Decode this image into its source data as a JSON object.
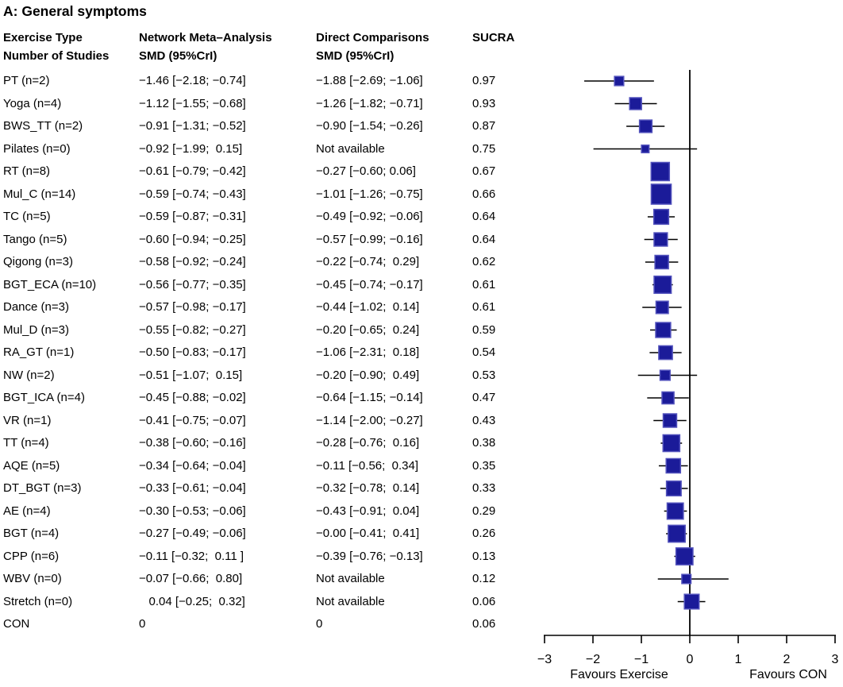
{
  "title": "A: General symptoms",
  "table": {
    "headers": {
      "col1_line1": "Exercise Type",
      "col1_line2": "Number of Studies",
      "col2_line1": "Network Meta–Analysis",
      "col2_line2": "SMD (95%CrI)",
      "col3_line1": "Direct Comparisons",
      "col3_line2": "SMD (95%CrI)",
      "col4_line1": "SUCRA"
    }
  },
  "chart_data": {
    "type": "scatter",
    "variant": "forest-plot",
    "title": "A: General symptoms",
    "x_axis": {
      "min": -3,
      "max": 3,
      "tick_values": [
        -3,
        -2,
        -1,
        0,
        1,
        2,
        3
      ],
      "tick_labels": [
        "−3",
        "−2",
        "−1",
        "0",
        "1",
        "2",
        "3"
      ],
      "reference_line": 0,
      "label_left": "Favours Exercise",
      "label_right": "Favours CON"
    },
    "rows": [
      {
        "label": "PT (n=2)",
        "nma": "−1.46 [−2.18; −0.74]",
        "direct": "−1.88 [−2.69; −1.06]",
        "sucra": "0.97",
        "est": -1.46,
        "lo": -2.18,
        "hi": -0.74
      },
      {
        "label": "Yoga (n=4)",
        "nma": "−1.12 [−1.55; −0.68]",
        "direct": "−1.26 [−1.82; −0.71]",
        "sucra": "0.93",
        "est": -1.12,
        "lo": -1.55,
        "hi": -0.68
      },
      {
        "label": "BWS_TT (n=2)",
        "nma": "−0.91 [−1.31; −0.52]",
        "direct": "−0.90 [−1.54; −0.26]",
        "sucra": "0.87",
        "est": -0.91,
        "lo": -1.31,
        "hi": -0.52
      },
      {
        "label": "Pilates (n=0)",
        "nma": "−0.92 [−1.99;  0.15]",
        "direct": "Not available",
        "sucra": "0.75",
        "est": -0.92,
        "lo": -1.99,
        "hi": 0.15
      },
      {
        "label": "RT (n=8)",
        "nma": "−0.61 [−0.79; −0.42]",
        "direct": "−0.27 [−0.60; 0.06]",
        "sucra": "0.67",
        "est": -0.61,
        "lo": -0.79,
        "hi": -0.42
      },
      {
        "label": "Mul_C (n=14)",
        "nma": "−0.59 [−0.74; −0.43]",
        "direct": "−1.01 [−1.26; −0.75]",
        "sucra": "0.66",
        "est": -0.59,
        "lo": -0.74,
        "hi": -0.43
      },
      {
        "label": "TC (n=5)",
        "nma": "−0.59 [−0.87; −0.31]",
        "direct": "−0.49 [−0.92; −0.06]",
        "sucra": "0.64",
        "est": -0.59,
        "lo": -0.87,
        "hi": -0.31
      },
      {
        "label": "Tango (n=5)",
        "nma": "−0.60 [−0.94; −0.25]",
        "direct": "−0.57 [−0.99; −0.16]",
        "sucra": "0.64",
        "est": -0.6,
        "lo": -0.94,
        "hi": -0.25
      },
      {
        "label": "Qigong (n=3)",
        "nma": "−0.58 [−0.92; −0.24]",
        "direct": "−0.22 [−0.74;  0.29]",
        "sucra": "0.62",
        "est": -0.58,
        "lo": -0.92,
        "hi": -0.24
      },
      {
        "label": "BGT_ECA (n=10)",
        "nma": "−0.56 [−0.77; −0.35]",
        "direct": "−0.45 [−0.74; −0.17]",
        "sucra": "0.61",
        "est": -0.56,
        "lo": -0.77,
        "hi": -0.35
      },
      {
        "label": "Dance (n=3)",
        "nma": "−0.57 [−0.98; −0.17]",
        "direct": "−0.44 [−1.02;  0.14]",
        "sucra": "0.61",
        "est": -0.57,
        "lo": -0.98,
        "hi": -0.17
      },
      {
        "label": "Mul_D (n=3)",
        "nma": "−0.55 [−0.82; −0.27]",
        "direct": "−0.20 [−0.65;  0.24]",
        "sucra": "0.59",
        "est": -0.55,
        "lo": -0.82,
        "hi": -0.27
      },
      {
        "label": "RA_GT (n=1)",
        "nma": "−0.50 [−0.83; −0.17]",
        "direct": "−1.06 [−2.31;  0.18]",
        "sucra": "0.54",
        "est": -0.5,
        "lo": -0.83,
        "hi": -0.17
      },
      {
        "label": "NW (n=2)",
        "nma": "−0.51 [−1.07;  0.15]",
        "direct": "−0.20 [−0.90;  0.49]",
        "sucra": "0.53",
        "est": -0.51,
        "lo": -1.07,
        "hi": 0.15
      },
      {
        "label": "BGT_ICA (n=4)",
        "nma": "−0.45 [−0.88; −0.02]",
        "direct": "−0.64 [−1.15; −0.14]",
        "sucra": "0.47",
        "est": -0.45,
        "lo": -0.88,
        "hi": -0.02
      },
      {
        "label": "VR (n=1)",
        "nma": "−0.41 [−0.75; −0.07]",
        "direct": "−1.14 [−2.00; −0.27]",
        "sucra": "0.43",
        "est": -0.41,
        "lo": -0.75,
        "hi": -0.07
      },
      {
        "label": "TT (n=4)",
        "nma": "−0.38 [−0.60; −0.16]",
        "direct": "−0.28 [−0.76;  0.16]",
        "sucra": "0.38",
        "est": -0.38,
        "lo": -0.6,
        "hi": -0.16
      },
      {
        "label": "AQE (n=5)",
        "nma": "−0.34 [−0.64; −0.04]",
        "direct": "−0.11 [−0.56;  0.34]",
        "sucra": "0.35",
        "est": -0.34,
        "lo": -0.64,
        "hi": -0.04
      },
      {
        "label": "DT_BGT (n=3)",
        "nma": "−0.33 [−0.61; −0.04]",
        "direct": "−0.32 [−0.78;  0.14]",
        "sucra": "0.33",
        "est": -0.33,
        "lo": -0.61,
        "hi": -0.04
      },
      {
        "label": "AE (n=4)",
        "nma": "−0.30 [−0.53; −0.06]",
        "direct": "−0.43 [−0.91;  0.04]",
        "sucra": "0.29",
        "est": -0.3,
        "lo": -0.53,
        "hi": -0.06
      },
      {
        "label": "BGT (n=4)",
        "nma": "−0.27 [−0.49; −0.06]",
        "direct": "−0.00 [−0.41;  0.41]",
        "sucra": "0.26",
        "est": -0.27,
        "lo": -0.49,
        "hi": -0.06
      },
      {
        "label": "CPP (n=6)",
        "nma": "−0.11 [−0.32;  0.11 ]",
        "direct": "−0.39 [−0.76; −0.13]",
        "sucra": "0.13",
        "est": -0.11,
        "lo": -0.32,
        "hi": 0.11
      },
      {
        "label": "WBV (n=0)",
        "nma": "−0.07 [−0.66;  0.80]",
        "direct": "Not available",
        "sucra": "0.12",
        "est": -0.07,
        "lo": -0.66,
        "hi": 0.8
      },
      {
        "label": "Stretch (n=0)",
        "nma": "   0.04 [−0.25;  0.32]",
        "direct": "Not available",
        "sucra": "0.06",
        "est": 0.04,
        "lo": -0.25,
        "hi": 0.32
      },
      {
        "label": "CON",
        "nma": "0",
        "direct": "0",
        "sucra": "0.06",
        "est": null,
        "lo": null,
        "hi": null
      }
    ]
  },
  "colors": {
    "marker_fill": "#1b1b99",
    "marker_stroke": "#5353bd",
    "line": "#000000",
    "text": "#000000"
  }
}
